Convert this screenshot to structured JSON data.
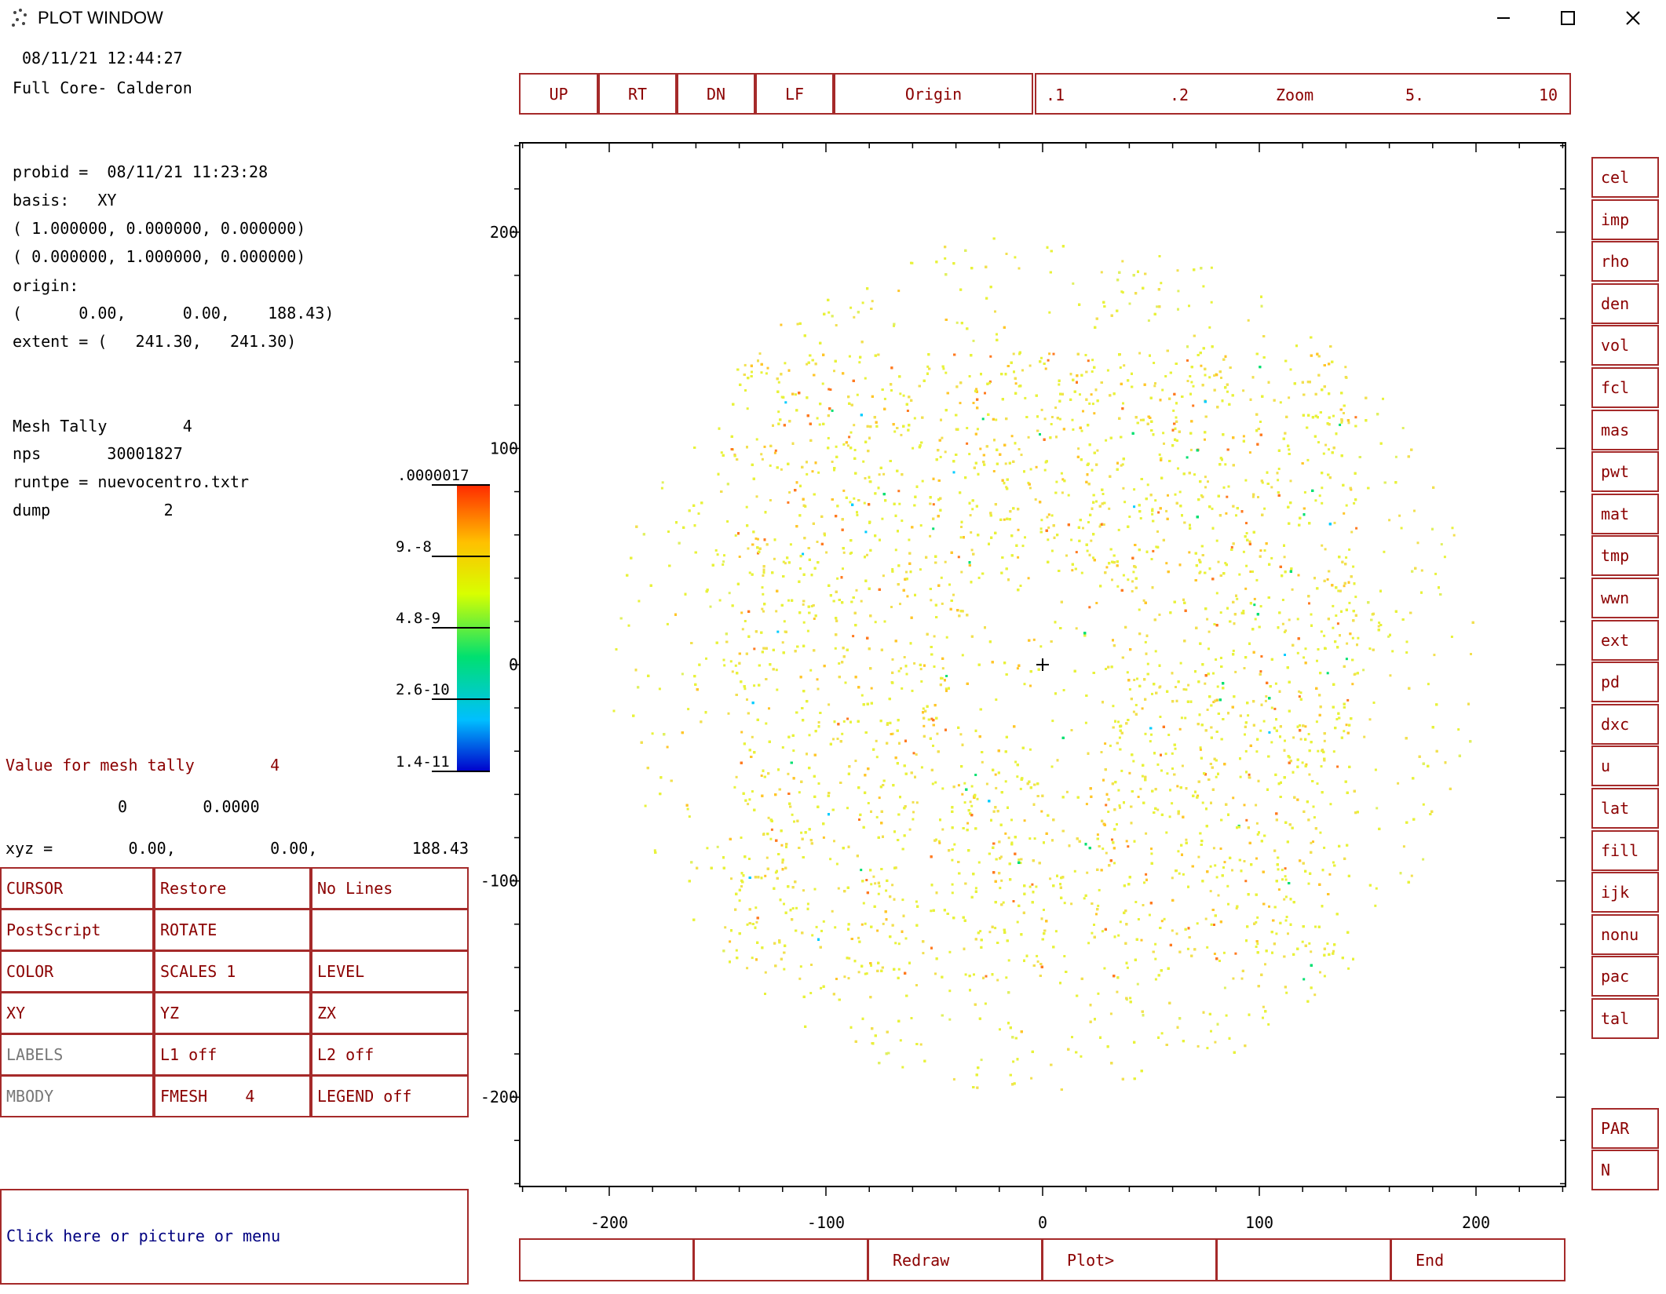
{
  "window": {
    "title": "PLOT WINDOW"
  },
  "header": {
    "datetime": "08/11/21 12:44:27",
    "problem_title": "Full Core- Calderon"
  },
  "info": {
    "probid": "probid =  08/11/21 11:23:28",
    "basis": "basis:   XY",
    "basis_v1": "( 1.000000, 0.000000, 0.000000)",
    "basis_v2": "( 0.000000, 1.000000, 0.000000)",
    "origin_label": "origin:",
    "origin_values": "(      0.00,      0.00,    188.43)",
    "extent": "extent = (   241.30,   241.30)"
  },
  "tally": {
    "mesh_tally": "Mesh Tally        4",
    "nps": "nps       30001827",
    "runtpe": "runtpe = nuevocentro.txtr",
    "dump": "dump            2"
  },
  "value_readout": {
    "label": "Value for mesh tally        4",
    "values": "0        0.0000",
    "xyz": "xyz =        0.00,          0.00,          188.43"
  },
  "legend": {
    "ticks": [
      ".0000017",
      "9.-8",
      "4.8-9",
      "2.6-10",
      "1.4-11"
    ]
  },
  "nav_buttons": [
    "UP",
    "RT",
    "DN",
    "LF",
    "Origin"
  ],
  "zoom": {
    "labels": [
      ".1",
      ".2",
      "Zoom",
      "5.",
      "10"
    ]
  },
  "menu": [
    [
      "CURSOR",
      "Restore",
      "No Lines"
    ],
    [
      "PostScript",
      "ROTATE",
      ""
    ],
    [
      "COLOR",
      "SCALES 1",
      "LEVEL"
    ],
    [
      "XY",
      "YZ",
      "ZX"
    ],
    [
      "LABELS",
      "L1 off",
      "L2 off"
    ],
    [
      "MBODY",
      "FMESH    4",
      "LEGEND off"
    ]
  ],
  "status": {
    "prompt": "Click here or picture or menu"
  },
  "bottom_buttons": [
    "",
    "",
    "Redraw",
    "Plot>",
    "",
    "End"
  ],
  "right_buttons": [
    "cel",
    "imp",
    "rho",
    "den",
    "vol",
    "fcl",
    "mas",
    "pwt",
    "mat",
    "tmp",
    "wwn",
    "ext",
    "pd",
    "dxc",
    "u",
    "lat",
    "fill",
    "ijk",
    "nonu",
    "pac",
    "tal"
  ],
  "right_buttons_lower": [
    "PAR",
    "N"
  ],
  "chart_data": {
    "type": "heatmap",
    "title": "",
    "xlabel": "",
    "ylabel": "",
    "xlim": [
      -241.3,
      241.3
    ],
    "ylim": [
      -241.3,
      241.3
    ],
    "x_ticks": [
      "-200",
      "-100",
      "0",
      "100",
      "200"
    ],
    "y_ticks": [
      "200",
      "100",
      "0",
      "-100",
      "-200"
    ],
    "colorscale": [
      "#0000cc",
      "#00ccff",
      "#00e070",
      "#e0ff00",
      "#ffcc00",
      "#ff3300"
    ],
    "description_values": {
      "core_radius": 200,
      "dense_region_halfwidth": 145
    }
  }
}
